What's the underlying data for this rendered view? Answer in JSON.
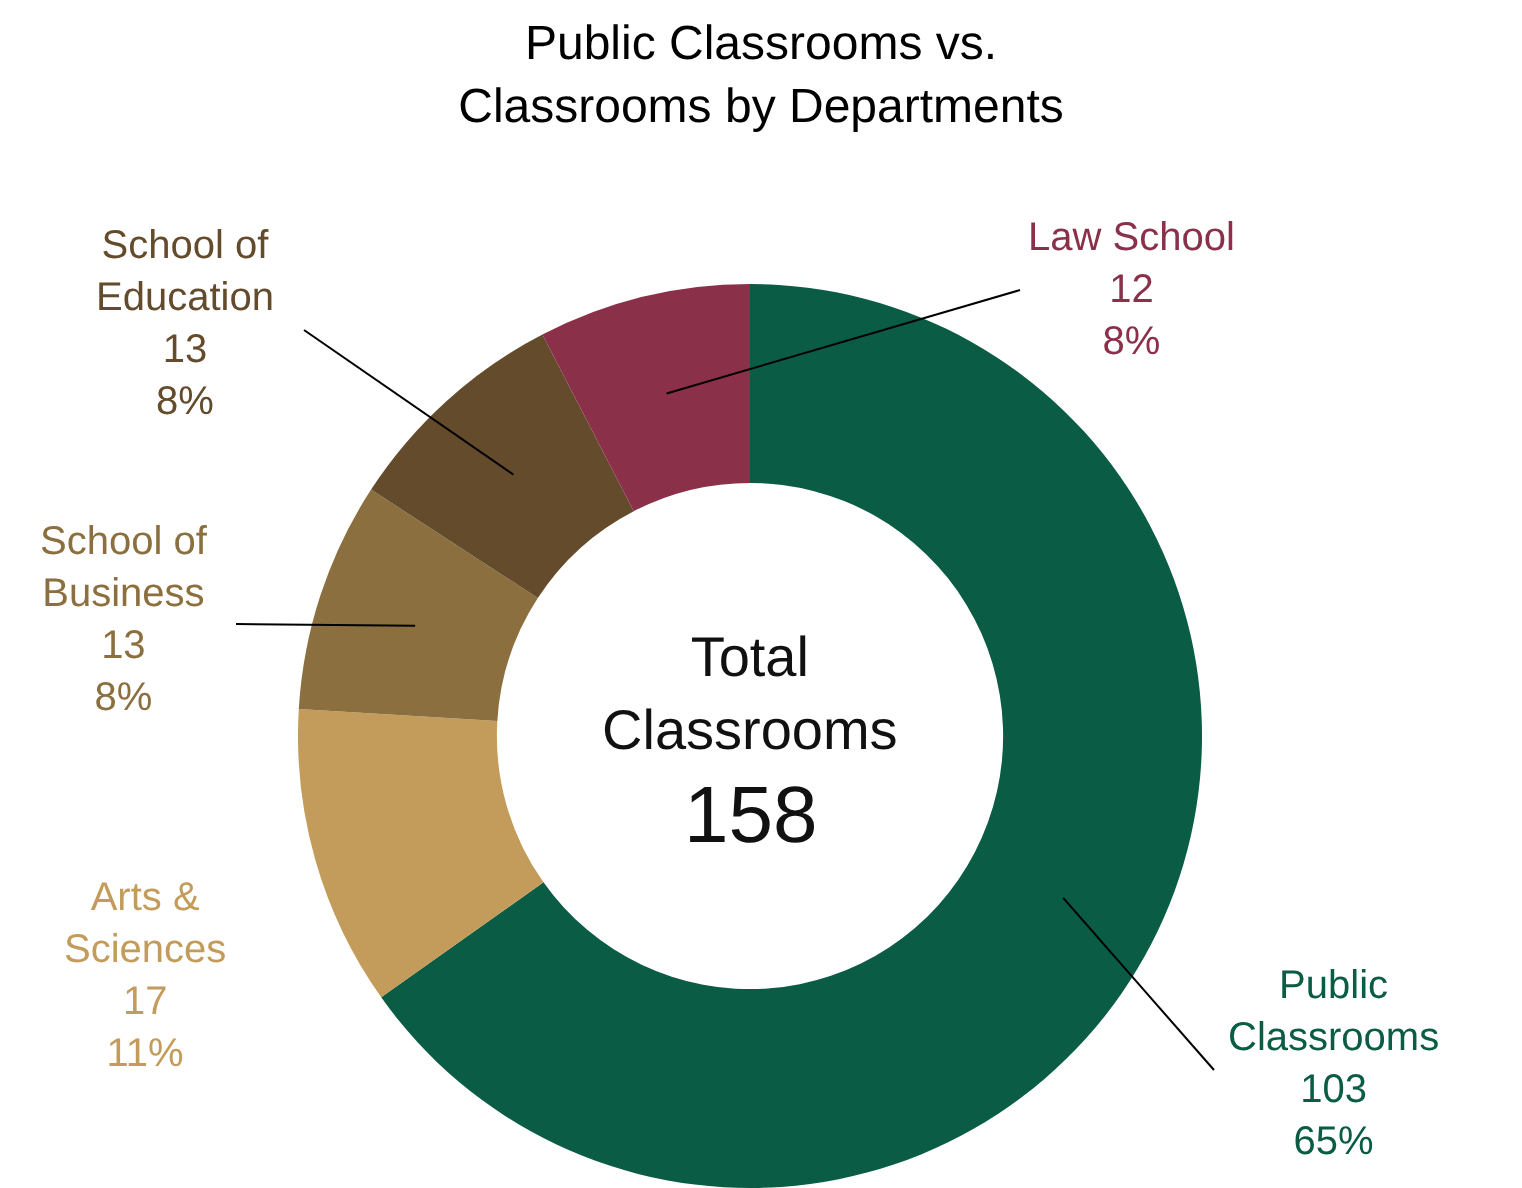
{
  "chart_data": {
    "type": "donut",
    "title": "Public Classrooms vs.\nClassrooms by Departments",
    "categories": [
      "Public\nClassrooms",
      "Arts &\nSciences",
      "School of\nBusiness",
      "School of\nEducation",
      "Law School"
    ],
    "values": [
      103,
      17,
      13,
      13,
      12
    ],
    "colors": [
      "#0a5c45",
      "#c39c5b",
      "#8b6f3e",
      "#634b2c",
      "#8a3049"
    ],
    "value_labels": [
      "103\n65%",
      "17\n11%",
      "13\n8%",
      "13\n8%",
      "12\n8%"
    ],
    "annotations": [
      "Total\nClassrooms",
      "158"
    ],
    "legend": false
  }
}
